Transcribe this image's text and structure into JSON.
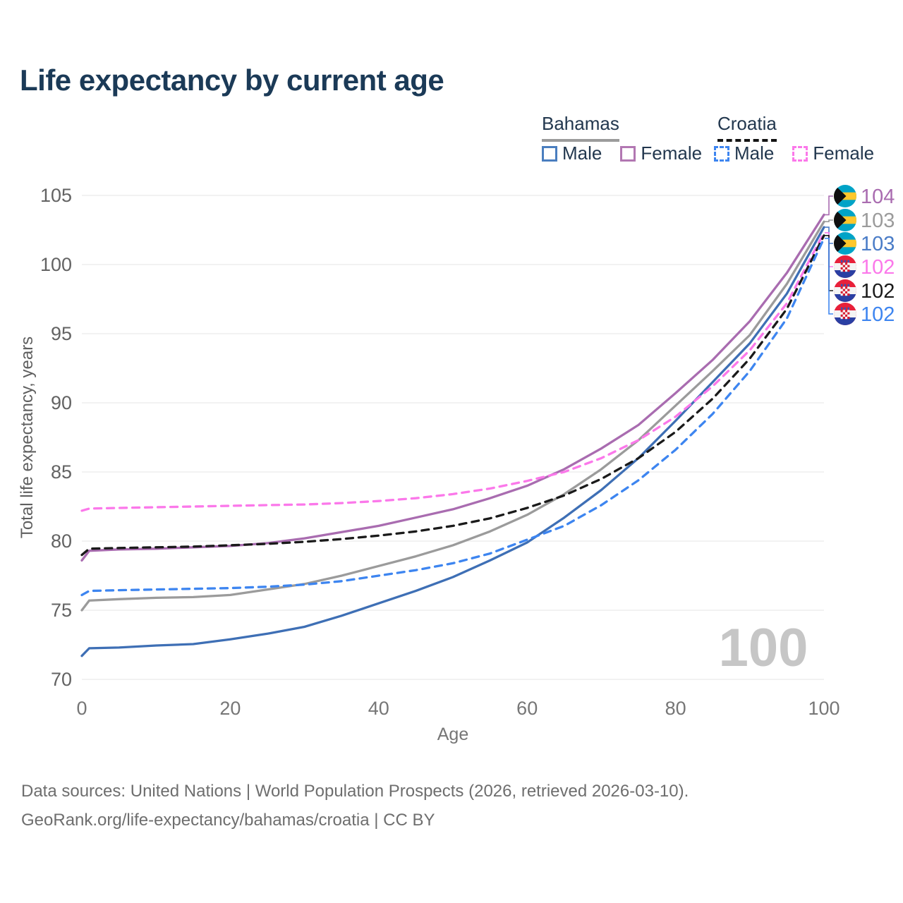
{
  "title": "Life expectancy by current age",
  "legend": {
    "groups": [
      {
        "country": "Bahamas",
        "line_style": "solid",
        "underline_color": "#9b9b9b",
        "items": [
          {
            "label": "Male",
            "color": "#4a7ebf",
            "dashed": false
          },
          {
            "label": "Female",
            "color": "#b277b2",
            "dashed": false
          }
        ]
      },
      {
        "country": "Croatia",
        "line_style": "dashed",
        "underline_color": "#141414",
        "items": [
          {
            "label": "Male",
            "color": "#3d85f0",
            "dashed": true
          },
          {
            "label": "Female",
            "color": "#fb78ea",
            "dashed": true
          }
        ]
      }
    ]
  },
  "watermark": "100",
  "end_labels": [
    {
      "value": "104",
      "color": "#a96cb0",
      "flag": "bahamas"
    },
    {
      "value": "103",
      "color": "#9b9b9b",
      "flag": "bahamas"
    },
    {
      "value": "103",
      "color": "#4a7cc7",
      "flag": "bahamas"
    },
    {
      "value": "102",
      "color": "#fb78ea",
      "flag": "croatia"
    },
    {
      "value": "102",
      "color": "#1a1a1a",
      "flag": "croatia"
    },
    {
      "value": "102",
      "color": "#3d85f0",
      "flag": "croatia"
    }
  ],
  "chart_data": {
    "type": "line",
    "title": "Life expectancy by current age",
    "xlabel": "Age",
    "ylabel": "Total life expectancy, years",
    "xlim": [
      0,
      100
    ],
    "ylim": [
      70,
      105
    ],
    "xticks": [
      0,
      20,
      40,
      60,
      80,
      100
    ],
    "yticks": [
      70,
      75,
      80,
      85,
      90,
      95,
      100,
      105
    ],
    "grid": "horizontal",
    "legend_position": "top-right",
    "x": [
      0,
      1,
      5,
      10,
      15,
      20,
      25,
      30,
      35,
      40,
      45,
      50,
      55,
      60,
      65,
      70,
      75,
      80,
      85,
      90,
      95,
      100
    ],
    "series": [
      {
        "name": "Bahamas Female",
        "country": "Bahamas",
        "sex": "Female",
        "color": "#a96cb0",
        "dashed": false,
        "values": [
          78.6,
          79.3,
          79.4,
          79.45,
          79.55,
          79.65,
          79.85,
          80.2,
          80.65,
          81.1,
          81.7,
          82.3,
          83.1,
          84.0,
          85.2,
          86.7,
          88.4,
          90.7,
          93.1,
          95.9,
          99.4,
          103.6
        ],
        "end_label": "104"
      },
      {
        "name": "Bahamas",
        "country": "Bahamas",
        "sex": "Both",
        "color": "#9b9b9b",
        "dashed": false,
        "values": [
          75.0,
          75.7,
          75.8,
          75.9,
          75.95,
          76.1,
          76.5,
          76.9,
          77.5,
          78.2,
          78.9,
          79.7,
          80.7,
          81.9,
          83.4,
          85.2,
          87.3,
          89.8,
          92.3,
          94.9,
          98.6,
          103.1
        ],
        "end_label": "103"
      },
      {
        "name": "Bahamas Male",
        "country": "Bahamas",
        "sex": "Male",
        "color": "#3e6fb5",
        "dashed": false,
        "values": [
          71.7,
          72.25,
          72.3,
          72.45,
          72.55,
          72.9,
          73.3,
          73.8,
          74.6,
          75.5,
          76.4,
          77.4,
          78.6,
          79.9,
          81.7,
          83.7,
          86.0,
          88.7,
          91.5,
          94.3,
          97.9,
          102.7
        ],
        "end_label": "103"
      },
      {
        "name": "Croatia Female",
        "country": "Croatia",
        "sex": "Female",
        "color": "#fb78ea",
        "dashed": true,
        "values": [
          82.2,
          82.35,
          82.4,
          82.45,
          82.5,
          82.55,
          82.6,
          82.65,
          82.75,
          82.9,
          83.1,
          83.4,
          83.8,
          84.35,
          85.0,
          86.0,
          87.3,
          89.0,
          91.2,
          93.8,
          97.2,
          102.3
        ],
        "end_label": "102"
      },
      {
        "name": "Croatia",
        "country": "Croatia",
        "sex": "Both",
        "color": "#1a1a1a",
        "dashed": true,
        "values": [
          79.0,
          79.45,
          79.5,
          79.55,
          79.6,
          79.7,
          79.8,
          79.95,
          80.15,
          80.4,
          80.7,
          81.1,
          81.65,
          82.4,
          83.3,
          84.5,
          86.0,
          87.9,
          90.3,
          93.2,
          96.8,
          102.1
        ],
        "end_label": "102"
      },
      {
        "name": "Croatia Male",
        "country": "Croatia",
        "sex": "Male",
        "color": "#3d85f0",
        "dashed": true,
        "values": [
          76.1,
          76.4,
          76.45,
          76.5,
          76.55,
          76.6,
          76.7,
          76.85,
          77.1,
          77.5,
          77.9,
          78.4,
          79.1,
          80.1,
          81.1,
          82.6,
          84.4,
          86.6,
          89.2,
          92.3,
          96.1,
          101.9
        ],
        "end_label": "102"
      }
    ]
  },
  "footer": {
    "line1": "Data sources: United Nations | World Population Prospects (2026, retrieved 2026-03-10).",
    "line2": "GeoRank.org/life-expectancy/bahamas/croatia | CC BY"
  }
}
